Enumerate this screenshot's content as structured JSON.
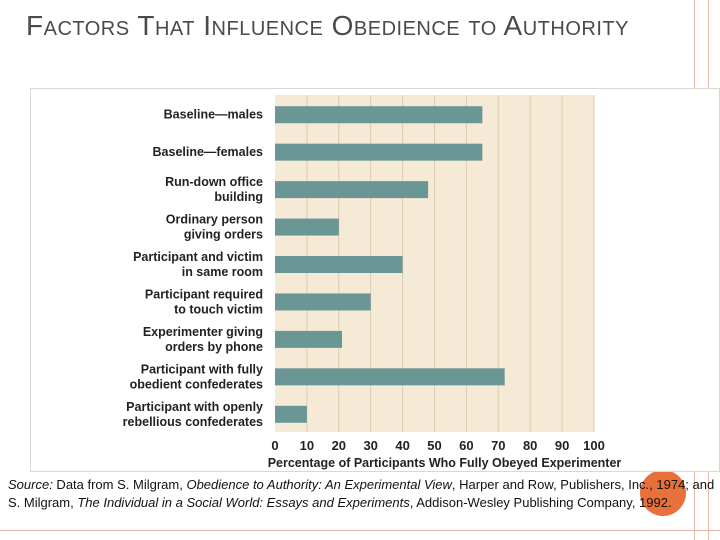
{
  "slide": {
    "title": "Factors That Influence Obedience to Authority",
    "source": {
      "label": "Source:",
      "text1": " Data from S. Milgram, ",
      "book1": "Obedience to Authority: An Experimental View",
      "text2": ", Harper and Row, Publishers, Inc., 1974; and S. Milgram, ",
      "book2": "The Individual in a Social World: Essays and Experiments",
      "text3": ", Addison-Wesley Publishing Company, 1992."
    }
  },
  "colors": {
    "bar": "#6b9696",
    "plot_bg": "#f4ead6",
    "grid": "#d9ccb3",
    "accent": "#e8703a"
  },
  "chart_data": {
    "type": "bar",
    "orientation": "horizontal",
    "categories": [
      [
        "Baseline—males"
      ],
      [
        "Baseline—females"
      ],
      [
        "Run-down office",
        "building"
      ],
      [
        "Ordinary person",
        "giving orders"
      ],
      [
        "Participant and victim",
        "in same room"
      ],
      [
        "Participant required",
        "to touch victim"
      ],
      [
        "Experimenter giving",
        "orders by phone"
      ],
      [
        "Participant with fully",
        "obedient confederates"
      ],
      [
        "Participant with openly",
        "rebellious confederates"
      ]
    ],
    "values": [
      65,
      65,
      48,
      20,
      40,
      30,
      21,
      72,
      10
    ],
    "xlabel": "Percentage of Participants Who Fully Obeyed Experimenter",
    "xlim": [
      0,
      100
    ],
    "xticks": [
      "0",
      "10",
      "20",
      "30",
      "40",
      "50",
      "60",
      "70",
      "80",
      "90",
      "100"
    ],
    "grid": true
  }
}
